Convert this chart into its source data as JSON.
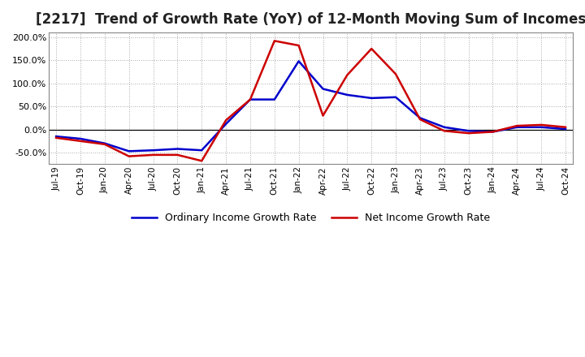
{
  "title": "[2217]  Trend of Growth Rate (YoY) of 12-Month Moving Sum of Incomes",
  "title_fontsize": 12,
  "legend_labels": [
    "Ordinary Income Growth Rate",
    "Net Income Growth Rate"
  ],
  "legend_colors": [
    "#0000cc",
    "#cc0000"
  ],
  "x_labels": [
    "Jul-19",
    "Oct-19",
    "Jan-20",
    "Apr-20",
    "Jul-20",
    "Oct-20",
    "Jan-21",
    "Apr-21",
    "Jul-21",
    "Oct-21",
    "Jan-22",
    "Apr-22",
    "Jul-22",
    "Oct-22",
    "Jan-23",
    "Apr-23",
    "Jul-23",
    "Oct-23",
    "Jan-24",
    "Apr-24",
    "Jul-24",
    "Oct-24"
  ],
  "ylim": [
    -75,
    210
  ],
  "yticks": [
    -50.0,
    0.0,
    50.0,
    100.0,
    150.0,
    200.0
  ],
  "ordinary_income": [
    -15,
    -20,
    -30,
    -47,
    -45,
    -42,
    -45,
    12,
    65,
    65,
    148,
    88,
    75,
    68,
    70,
    25,
    5,
    -3,
    -5,
    5,
    5,
    1
  ],
  "net_income": [
    -18,
    -25,
    -32,
    -58,
    -55,
    -55,
    -68,
    20,
    65,
    192,
    182,
    30,
    118,
    175,
    120,
    22,
    -3,
    -8,
    -5,
    8,
    10,
    5
  ],
  "background_color": "#ffffff",
  "grid_color": "#aaaaaa",
  "plot_bg": "#ffffff"
}
